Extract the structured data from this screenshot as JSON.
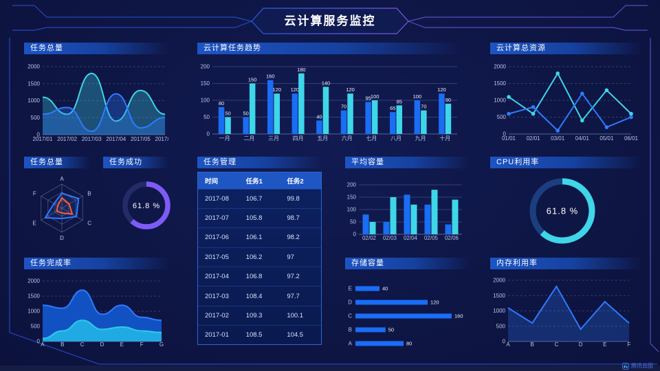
{
  "header": {
    "title": "云计算服务监控"
  },
  "watermark": {
    "text": "腾讯云图"
  },
  "colors": {
    "blue_bar": "#1a6df5",
    "cyan": "#3ed6e8",
    "line_blue": "#2e7bff",
    "purple": "#7e5bf6",
    "orange": "#ff5b35",
    "frame_line": "#2b50cf",
    "panel_title_bg": "#1d54c4",
    "table_header_bg": "#1e56c4"
  },
  "panels": {
    "task_total_top": {
      "title": "任务总量"
    },
    "task_trend": {
      "title": "云计算任务趋势"
    },
    "cloud_resources": {
      "title": "云计算总资源"
    },
    "task_radar": {
      "title": "任务总量"
    },
    "task_success": {
      "title": "任务成功"
    },
    "task_table": {
      "title": "任务管理"
    },
    "avg_capacity": {
      "title": "平均容量"
    },
    "cpu_usage": {
      "title": "CPU利用率"
    },
    "completion": {
      "title": "任务完成率"
    },
    "storage": {
      "title": "存储容量"
    },
    "memory": {
      "title": "内存利用率"
    }
  },
  "chart_data": [
    {
      "id": "task_total",
      "type": "area",
      "smooth": true,
      "grid": "dashed",
      "x": [
        "2017/01",
        "2017/02",
        "2017/03",
        "2017/04",
        "2017/05",
        "2017/06"
      ],
      "ylim": [
        0,
        2000
      ],
      "yticks": [
        0,
        500,
        1000,
        1500,
        2000
      ],
      "series": [
        {
          "name": "series-cyan",
          "color": "#3ed6e8",
          "values": [
            1100,
            600,
            1800,
            400,
            1300,
            600
          ]
        },
        {
          "name": "series-blue",
          "color": "#2e7bff",
          "values": [
            600,
            800,
            100,
            1200,
            200,
            500
          ]
        }
      ]
    },
    {
      "id": "task_trend",
      "type": "bar",
      "grid": "solid",
      "show_labels": true,
      "categories": [
        "一月",
        "二月",
        "三月",
        "四月",
        "五月",
        "六月",
        "七月",
        "八月",
        "九月",
        "十月"
      ],
      "ylim": [
        0,
        200
      ],
      "yticks": [
        0,
        50,
        100,
        150,
        200
      ],
      "series": [
        {
          "name": "任务1",
          "color": "#1a6df5",
          "values": [
            80,
            50,
            160,
            120,
            40,
            70,
            95,
            65,
            100,
            120
          ]
        },
        {
          "name": "任务2",
          "color": "#3ed6e8",
          "values": [
            50,
            150,
            120,
            180,
            140,
            120,
            100,
            85,
            70,
            90
          ]
        }
      ]
    },
    {
      "id": "cloud_resources",
      "type": "line",
      "markers": true,
      "grid": "dashed",
      "x": [
        "01/01",
        "02/01",
        "03/01",
        "04/01",
        "05/01",
        "06/01"
      ],
      "ylim": [
        0,
        2000
      ],
      "yticks": [
        0,
        500,
        1000,
        1500,
        2000
      ],
      "series": [
        {
          "name": "series-cyan",
          "color": "#3ed6e8",
          "values": [
            1100,
            600,
            1800,
            400,
            1300,
            600
          ]
        },
        {
          "name": "series-blue",
          "color": "#2e7bff",
          "values": [
            600,
            800,
            100,
            1200,
            200,
            500
          ]
        }
      ]
    },
    {
      "id": "task_radar",
      "type": "radar",
      "axes": [
        "A",
        "B",
        "C",
        "D",
        "E",
        "F"
      ],
      "max": 100,
      "series": [
        {
          "name": "series-blue",
          "color": "#2e7bff",
          "values": [
            62,
            80,
            70,
            43,
            80,
            38
          ]
        },
        {
          "name": "series-orange",
          "color": "#ff5b35",
          "values": [
            43,
            35,
            50,
            20,
            25,
            20
          ]
        }
      ]
    },
    {
      "id": "task_success",
      "type": "donut",
      "label": "61.8 %",
      "percent": 61.8,
      "color": "#7e5bf6",
      "track": "#232c66"
    },
    {
      "id": "task_table",
      "type": "table",
      "headers": [
        "时间",
        "任务1",
        "任务2"
      ],
      "rows": [
        [
          "2017-08",
          "106.7",
          "99.8"
        ],
        [
          "2017-07",
          "105.8",
          "98.7"
        ],
        [
          "2017-06",
          "106.1",
          "98.2"
        ],
        [
          "2017-05",
          "106.2",
          "97"
        ],
        [
          "2017-04",
          "106.8",
          "97.2"
        ],
        [
          "2017-03",
          "108.4",
          "97.7"
        ],
        [
          "2017-02",
          "109.3",
          "100.1"
        ],
        [
          "2017-01",
          "108.5",
          "104.5"
        ]
      ]
    },
    {
      "id": "avg_capacity",
      "type": "bar",
      "grid": "solid",
      "show_labels": false,
      "categories": [
        "02/02",
        "02/03",
        "02/04",
        "02/05",
        "02/06"
      ],
      "ylim": [
        0,
        200
      ],
      "yticks": [
        0,
        50,
        100,
        150,
        200
      ],
      "series": [
        {
          "name": "series-blue",
          "color": "#1a6df5",
          "values": [
            80,
            50,
            160,
            120,
            40
          ]
        },
        {
          "name": "series-cyan",
          "color": "#3ed6e8",
          "values": [
            50,
            150,
            120,
            180,
            140
          ]
        }
      ]
    },
    {
      "id": "cpu_usage",
      "type": "donut",
      "label": "61.8 %",
      "percent": 61.8,
      "color": "#3ed6e8",
      "track": "#1b3f7e"
    },
    {
      "id": "completion",
      "type": "area",
      "smooth": true,
      "stacked_look": true,
      "grid": "dashed",
      "x": [
        "A",
        "B",
        "C",
        "D",
        "E",
        "F",
        "G"
      ],
      "ylim": [
        0,
        2000
      ],
      "yticks": [
        0,
        500,
        1000,
        1500,
        2000
      ],
      "series": [
        {
          "name": "series-blue",
          "color": "#2e7bff",
          "fill": "#1257cc",
          "values": [
            1200,
            1100,
            1700,
            900,
            1200,
            800,
            700
          ]
        },
        {
          "name": "series-cyan",
          "color": "#2fc8ec",
          "fill": "#22b2e6",
          "values": [
            100,
            350,
            700,
            400,
            480,
            350,
            300
          ]
        }
      ]
    },
    {
      "id": "storage",
      "type": "hbar",
      "color": "#1a6df5",
      "categories": [
        "E",
        "D",
        "C",
        "B",
        "A"
      ],
      "values": [
        40,
        120,
        160,
        50,
        80
      ]
    },
    {
      "id": "memory",
      "type": "line",
      "markers": false,
      "fill": true,
      "grid": "dashed",
      "x": [
        "A",
        "B",
        "C",
        "D",
        "E",
        "F"
      ],
      "ylim": [
        0,
        2000
      ],
      "yticks": [
        0,
        500,
        1000,
        1500,
        2000
      ],
      "series": [
        {
          "name": "series-blue",
          "color": "#2e7bff",
          "values": [
            1100,
            600,
            1800,
            400,
            1300,
            600
          ]
        }
      ]
    }
  ]
}
